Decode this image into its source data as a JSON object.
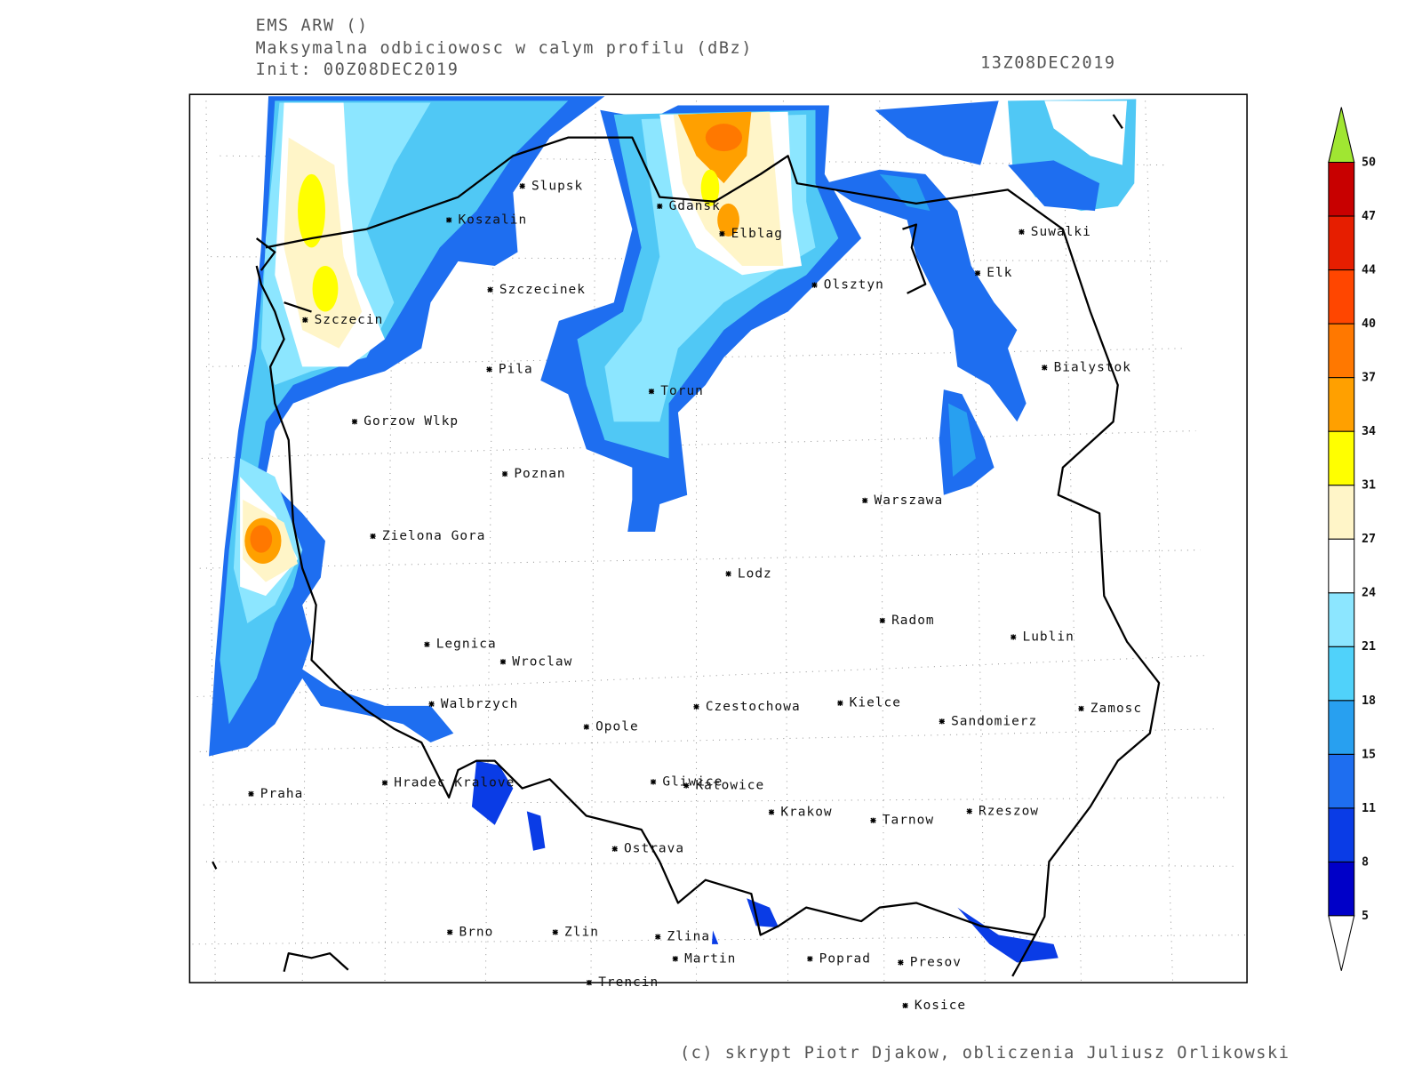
{
  "header": {
    "model": "EMS ARW ()",
    "field": "Maksymalna odbiciowosc w calym profilu (dBz)",
    "init": "Init: 00Z08DEC2019",
    "valid": "13Z08DEC2019"
  },
  "cities": [
    "Slupsk",
    "Koszalin",
    "Gdansk",
    "Elblag",
    "Suwalki",
    "Elk",
    "Olsztyn",
    "Szczecinek",
    "Szczecin",
    "Bialystok",
    "Pila",
    "Torun",
    "Gorzow Wlkp",
    "Poznan",
    "Warszawa",
    "Zielona Gora",
    "Lodz",
    "Radom",
    "Lublin",
    "Legnica",
    "Wroclaw",
    "Walbrzych",
    "Czestochowa",
    "Kielce",
    "Zamosc",
    "Sandomierz",
    "Opole",
    "Gliwice",
    "Katowice",
    "Hradec Kralove",
    "Praha",
    "Krakow",
    "Tarnow",
    "Rzeszow",
    "Ostrava",
    "Brno",
    "Zlin",
    "Zlina",
    "Martin",
    "Poprad",
    "Presov",
    "Trencin",
    "Kosice"
  ],
  "colorbar": {
    "levels": [
      5,
      8,
      11,
      15,
      18,
      21,
      24,
      27,
      31,
      34,
      37,
      40,
      44,
      47,
      50
    ],
    "colors": [
      "#0000c8",
      "#0a3ce6",
      "#1e6ef0",
      "#28a0f0",
      "#50d2fa",
      "#8ce6ff",
      "#ffffff",
      "#fff5c8",
      "#ffff00",
      "#ffa000",
      "#ff7800",
      "#ff4600",
      "#e61e00",
      "#c80000"
    ],
    "over_color": "#a0e632",
    "under_color": "#ffffff"
  },
  "credit": "(c) skrypt Piotr Djakow, obliczenia Juliusz Orlikowski"
}
